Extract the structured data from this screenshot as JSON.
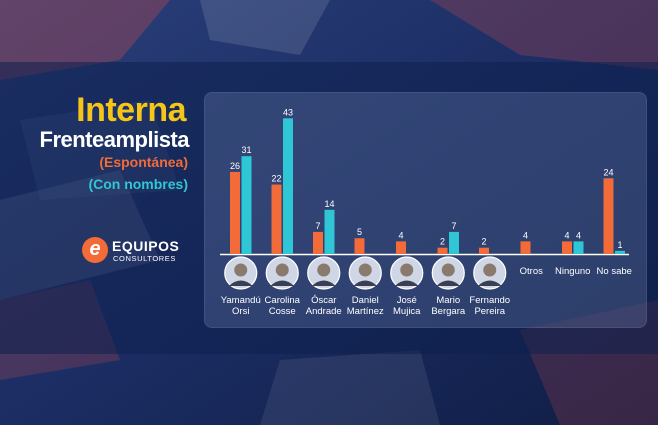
{
  "header": {
    "title": "Interna",
    "title_line2": "Frenteamplista",
    "subtitle_orange": "(Espontánea)",
    "subtitle_cyan": "(Con nombres)"
  },
  "logo": {
    "mark": "e",
    "name": "EQUIPOS",
    "sub": "CONSULTORES"
  },
  "colors": {
    "orange": "#f26b38",
    "cyan": "#2fc6d6",
    "yellow": "#f5c518",
    "background": "#15264f"
  },
  "chart_data": {
    "type": "bar",
    "categories": [
      [
        "Yamandú",
        "Orsi"
      ],
      [
        "Carolina",
        "Cosse"
      ],
      [
        "Óscar",
        "Andrade"
      ],
      [
        "Daniel",
        "Martínez"
      ],
      [
        "José",
        "Mujica"
      ],
      [
        "Mario",
        "Bergara"
      ],
      [
        "Fernando",
        "Pereira"
      ],
      [
        "Otros"
      ],
      [
        "Ninguno"
      ],
      [
        "No sabe"
      ]
    ],
    "photos": [
      true,
      true,
      true,
      true,
      true,
      true,
      true,
      false,
      false,
      false
    ],
    "series": [
      {
        "name": "(Espontánea)",
        "color": "#f26b38",
        "values": [
          26,
          22,
          7,
          5,
          4,
          2,
          2,
          4,
          4,
          24
        ]
      },
      {
        "name": "(Con nombres)",
        "color": "#2fc6d6",
        "values": [
          31,
          43,
          14,
          null,
          null,
          7,
          null,
          null,
          4,
          1
        ]
      }
    ],
    "ylim": [
      0,
      45
    ],
    "grid": false,
    "legend": "none"
  }
}
